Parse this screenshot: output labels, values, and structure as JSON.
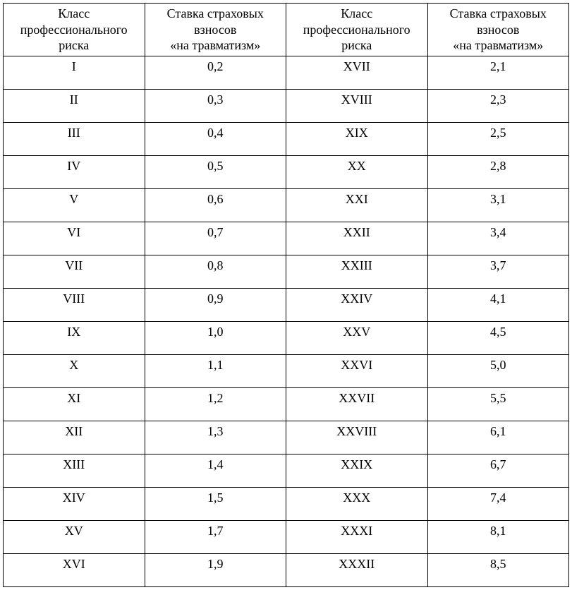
{
  "table": {
    "type": "table",
    "background_color": "#ffffff",
    "border_color": "#000000",
    "text_color": "#000000",
    "font_family": "Times New Roman",
    "font_size_pt": 13,
    "header_lines": {
      "class": [
        "Класс",
        "профессионального",
        "риска"
      ],
      "rate": [
        "Ставка страховых",
        "взносов",
        "«на травматизм»"
      ]
    },
    "rows": [
      {
        "class1": "I",
        "rate1": "0,2",
        "class2": "XVII",
        "rate2": "2,1"
      },
      {
        "class1": "II",
        "rate1": "0,3",
        "class2": "XVIII",
        "rate2": "2,3"
      },
      {
        "class1": "III",
        "rate1": "0,4",
        "class2": "XIX",
        "rate2": "2,5"
      },
      {
        "class1": "IV",
        "rate1": "0,5",
        "class2": "XX",
        "rate2": "2,8"
      },
      {
        "class1": "V",
        "rate1": "0,6",
        "class2": "XXI",
        "rate2": "3,1"
      },
      {
        "class1": "VI",
        "rate1": "0,7",
        "class2": "XXII",
        "rate2": "3,4"
      },
      {
        "class1": "VII",
        "rate1": "0,8",
        "class2": "XXIII",
        "rate2": "3,7"
      },
      {
        "class1": "VIII",
        "rate1": "0,9",
        "class2": "XXIV",
        "rate2": "4,1"
      },
      {
        "class1": "IX",
        "rate1": "1,0",
        "class2": "XXV",
        "rate2": "4,5"
      },
      {
        "class1": "X",
        "rate1": "1,1",
        "class2": "XXVI",
        "rate2": "5,0"
      },
      {
        "class1": "XI",
        "rate1": "1,2",
        "class2": "XXVII",
        "rate2": "5,5"
      },
      {
        "class1": "XII",
        "rate1": "1,3",
        "class2": "XXVIII",
        "rate2": "6,1"
      },
      {
        "class1": "XIII",
        "rate1": "1,4",
        "class2": "XXIX",
        "rate2": "6,7"
      },
      {
        "class1": "XIV",
        "rate1": "1,5",
        "class2": "XXX",
        "rate2": "7,4"
      },
      {
        "class1": "XV",
        "rate1": "1,7",
        "class2": "XXXI",
        "rate2": "8,1"
      },
      {
        "class1": "XVI",
        "rate1": "1,9",
        "class2": "XXXII",
        "rate2": "8,5"
      }
    ],
    "column_widths_pct": [
      25,
      25,
      25,
      25
    ],
    "alignment": "center"
  }
}
